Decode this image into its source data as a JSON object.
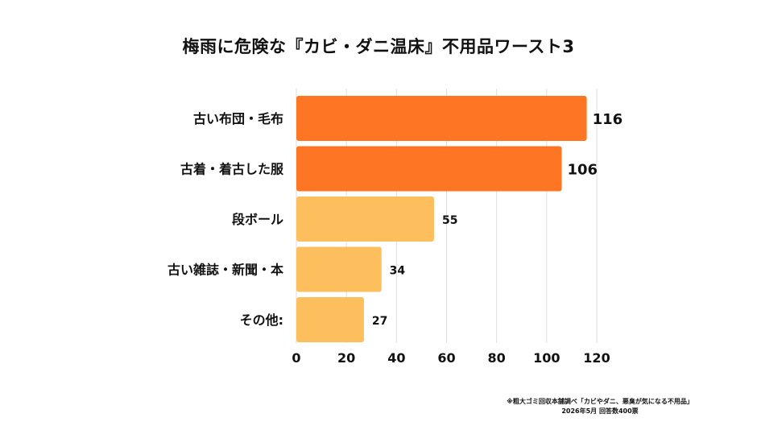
{
  "chart_data": {
    "type": "bar",
    "orientation": "horizontal",
    "title": "梅雨に危険な『カビ・ダニ温床』不用品ワースト3",
    "categories": [
      "古い布団・毛布",
      "古着・着古した服",
      "段ボール",
      "古い雑誌・新聞・本",
      "その他:"
    ],
    "values": [
      116,
      106,
      55,
      34,
      27
    ],
    "colors": [
      "#fe7623",
      "#fe7623",
      "#fdbe5e",
      "#fdbe5e",
      "#fdbe5e"
    ],
    "xlim": [
      0,
      120
    ],
    "xticks": [
      0,
      20,
      40,
      60,
      80,
      100,
      120
    ],
    "grid": true
  },
  "source": {
    "line1": "※粗大ゴミ回収本舗調べ「カビやダニ、悪臭が気になる不用品」",
    "line2": "2026年5月 回答数400票"
  }
}
